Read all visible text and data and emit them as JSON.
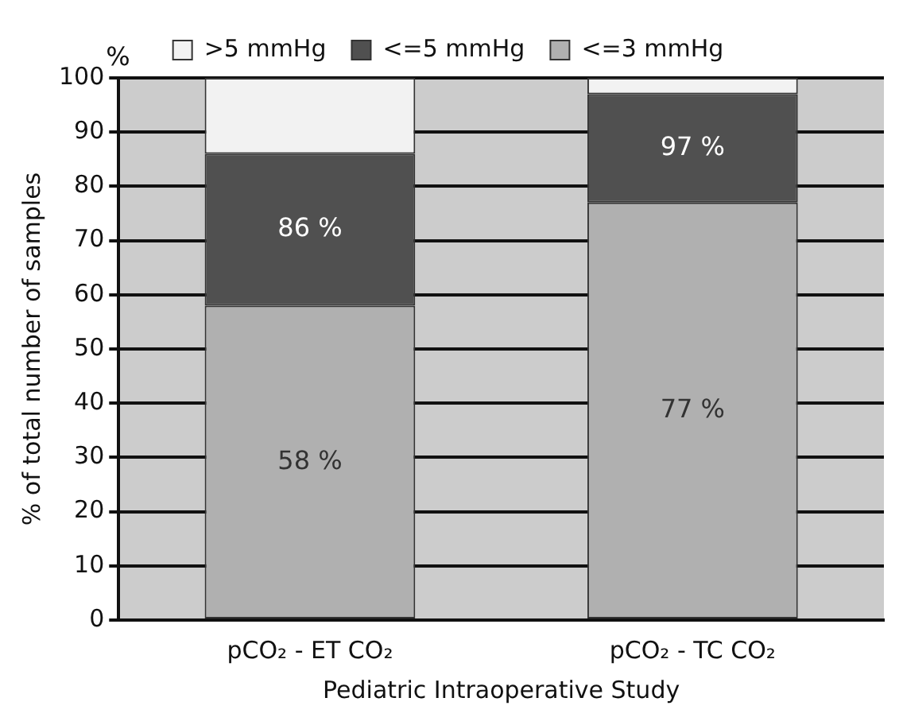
{
  "chart_data": {
    "type": "bar",
    "stacked": true,
    "xlabel": "Pediatric Intraoperative Study",
    "ylabel": "% of total number of samples",
    "annotations": [
      "%",
      {
        "text": "86 %",
        "x": "pCO₂ - ET CO₂",
        "y": 86
      },
      {
        "text": "97 %",
        "x": "pCO₂ - TC CO₂",
        "y": 97
      }
    ],
    "categories": [
      "pCO₂ - ET CO₂",
      "pCO₂ - TC CO₂"
    ],
    "series": [
      {
        "name": "<=3 mmHg",
        "color": "#b0b0b0",
        "values": [
          58,
          77
        ],
        "value_labels": [
          "58 %",
          "77 %"
        ]
      },
      {
        "name": "<=5 mmHg",
        "color": "#505050",
        "values": [
          28,
          20
        ]
      },
      {
        "name": ">5 mmHg",
        "color": "#f2f2f2",
        "values": [
          14,
          3
        ]
      }
    ],
    "ylim": [
      0,
      100
    ],
    "yticks": [
      0,
      10,
      20,
      30,
      40,
      50,
      60,
      70,
      80,
      90,
      100
    ],
    "grid": "y",
    "legend": "top"
  }
}
